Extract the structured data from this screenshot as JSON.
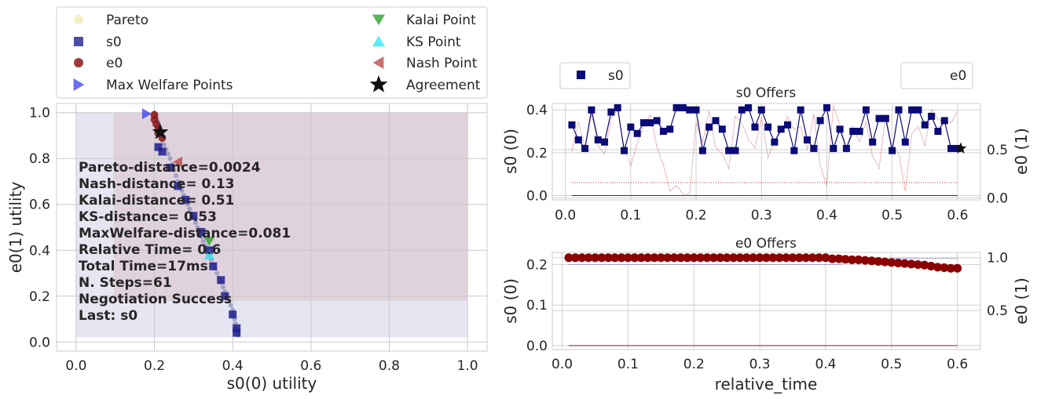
{
  "chart_data": [
    {
      "type": "scatter",
      "xlabel": "s0(0) utility",
      "ylabel": "e0(1) utility",
      "xlim": [
        -0.05,
        1.05
      ],
      "ylim": [
        -0.04,
        1.04
      ],
      "xticks": [
        "0.0",
        "0.2",
        "0.4",
        "0.6",
        "0.8",
        "1.0"
      ],
      "yticks": [
        "0.0",
        "0.2",
        "0.4",
        "0.6",
        "0.8",
        "1.0"
      ],
      "grid": true,
      "legend_position": "top",
      "legend": [
        "Pareto",
        "s0",
        "e0",
        "Max Welfare Points",
        "Kalai Point",
        "KS Point",
        "Nash Point",
        "Agreement"
      ],
      "regions": [
        {
          "x": [
            0.0,
            1.0
          ],
          "y": [
            0.02,
            1.0
          ],
          "color": "#e6e6f2"
        },
        {
          "x": [
            0.095,
            1.0
          ],
          "y": [
            0.18,
            1.0
          ],
          "color": "#e0d2dc"
        }
      ],
      "pareto": [
        [
          0.2,
          1.0
        ],
        [
          0.21,
          0.95
        ],
        [
          0.22,
          0.88
        ],
        [
          0.24,
          0.8
        ],
        [
          0.26,
          0.7
        ],
        [
          0.28,
          0.62
        ],
        [
          0.3,
          0.54
        ],
        [
          0.32,
          0.46
        ],
        [
          0.34,
          0.38
        ],
        [
          0.36,
          0.3
        ],
        [
          0.38,
          0.22
        ],
        [
          0.4,
          0.14
        ],
        [
          0.41,
          0.06
        ],
        [
          0.415,
          0.02
        ]
      ],
      "s0_offers": [
        [
          0.21,
          0.85
        ],
        [
          0.22,
          0.83
        ],
        [
          0.24,
          0.76
        ],
        [
          0.26,
          0.68
        ],
        [
          0.28,
          0.62
        ],
        [
          0.3,
          0.55
        ],
        [
          0.32,
          0.48
        ],
        [
          0.34,
          0.4
        ],
        [
          0.35,
          0.33
        ],
        [
          0.37,
          0.27
        ],
        [
          0.38,
          0.2
        ],
        [
          0.4,
          0.12
        ],
        [
          0.41,
          0.06
        ],
        [
          0.41,
          0.04
        ]
      ],
      "e0_offers": [
        [
          0.2,
          0.99
        ],
        [
          0.2,
          0.97
        ],
        [
          0.205,
          0.95
        ],
        [
          0.21,
          0.93
        ],
        [
          0.21,
          0.91
        ],
        [
          0.22,
          0.89
        ]
      ],
      "max_welfare_points": [
        [
          0.18,
          0.995
        ]
      ],
      "kalai_point": [
        0.34,
        0.44
      ],
      "ks_point": [
        0.34,
        0.38
      ],
      "nash_point": [
        0.26,
        0.785
      ],
      "agreement": [
        0.215,
        0.915
      ],
      "annotations": [
        "Pareto-distance=0.0024",
        "Nash-distance= 0.13",
        "Kalai-distance= 0.51",
        "KS-distance= 0.53",
        "MaxWelfare-distance=0.081",
        "Relative Time=  0.6",
        "Total Time=17ms",
        "N. Steps=61",
        "Negotiation Success",
        "Last: s0"
      ]
    },
    {
      "type": "line",
      "title": "s0 Offers",
      "xlabel": "",
      "ylabel": "s0 (0)",
      "ylabel_right": "e0 (1)",
      "xlim": [
        -0.02,
        0.635
      ],
      "ylim": [
        -0.02,
        0.43
      ],
      "ylim_right": [
        -0.02,
        0.98
      ],
      "xticks": [
        "0.0",
        "0.1",
        "0.2",
        "0.3",
        "0.4",
        "0.5",
        "0.6"
      ],
      "yticks": [
        "0.0",
        "0.2",
        "0.4"
      ],
      "yticks_right": [
        "0.0",
        "0.5"
      ],
      "legend": [
        "s0",
        "e0"
      ],
      "x": [
        0.01,
        0.02,
        0.03,
        0.04,
        0.05,
        0.06,
        0.07,
        0.08,
        0.09,
        0.1,
        0.11,
        0.12,
        0.13,
        0.14,
        0.15,
        0.16,
        0.17,
        0.18,
        0.19,
        0.2,
        0.21,
        0.22,
        0.23,
        0.24,
        0.25,
        0.26,
        0.27,
        0.28,
        0.29,
        0.3,
        0.31,
        0.32,
        0.33,
        0.34,
        0.35,
        0.36,
        0.37,
        0.38,
        0.39,
        0.4,
        0.41,
        0.42,
        0.43,
        0.44,
        0.45,
        0.46,
        0.47,
        0.48,
        0.49,
        0.5,
        0.51,
        0.52,
        0.53,
        0.54,
        0.55,
        0.56,
        0.57,
        0.58,
        0.59,
        0.6
      ],
      "series": [
        {
          "name": "s0",
          "values": [
            0.33,
            0.26,
            0.22,
            0.4,
            0.26,
            0.25,
            0.39,
            0.41,
            0.21,
            0.32,
            0.29,
            0.34,
            0.34,
            0.35,
            0.3,
            0.31,
            0.41,
            0.41,
            0.4,
            0.4,
            0.21,
            0.32,
            0.35,
            0.31,
            0.21,
            0.21,
            0.4,
            0.41,
            0.32,
            0.4,
            0.32,
            0.25,
            0.31,
            0.33,
            0.21,
            0.4,
            0.26,
            0.22,
            0.35,
            0.41,
            0.22,
            0.31,
            0.22,
            0.3,
            0.3,
            0.4,
            0.25,
            0.36,
            0.36,
            0.21,
            0.4,
            0.25,
            0.4,
            0.4,
            0.33,
            0.37,
            0.3,
            0.35,
            0.22,
            0.22
          ]
        },
        {
          "name": "",
          "values": [
            0.49,
            0.79,
            0.52,
            0.87,
            0.54,
            0.46,
            0.82,
            0.92,
            0.52,
            0.33,
            0.57,
            0.75,
            0.86,
            0.53,
            0.34,
            0.07,
            0.13,
            0.04,
            0.04,
            0.78,
            0.58,
            0.9,
            0.52,
            0.46,
            0.31,
            0.85,
            0.78,
            0.61,
            0.52,
            0.83,
            0.42,
            0.59,
            0.69,
            0.84,
            0.71,
            0.74,
            0.5,
            0.87,
            0.33,
            0.13,
            0.96,
            0.76,
            0.52,
            0.74,
            0.58,
            0.79,
            0.43,
            0.31,
            0.86,
            0.51,
            0.47,
            0.07,
            0.67,
            0.74,
            0.54,
            0.92,
            0.82,
            0.79,
            0.78,
            0.9
          ]
        }
      ],
      "reference_lines": [
        {
          "axis": "right",
          "value": 0.16,
          "color": "#c03030"
        },
        {
          "axis": "left",
          "value": 0.0,
          "color": "#2a2a8a"
        }
      ],
      "agreement": [
        0.605,
        0.22
      ]
    },
    {
      "type": "line",
      "title": "e0 Offers",
      "xlabel": "relative_time",
      "ylabel": "s0 (0)",
      "ylabel_right": "e0 (1)",
      "xlim": [
        -0.015,
        0.635
      ],
      "ylim": [
        -0.01,
        0.23
      ],
      "ylim_right": [
        0.13,
        1.05
      ],
      "xticks": [
        "0.0",
        "0.1",
        "0.2",
        "0.3",
        "0.4",
        "0.5",
        "0.6"
      ],
      "yticks": [
        "0.0",
        "0.1",
        "0.2"
      ],
      "yticks_right": [
        "0.5",
        "1.0"
      ],
      "x": [
        0.01,
        0.02,
        0.03,
        0.04,
        0.05,
        0.06,
        0.07,
        0.08,
        0.09,
        0.1,
        0.11,
        0.12,
        0.13,
        0.14,
        0.15,
        0.16,
        0.17,
        0.18,
        0.19,
        0.2,
        0.21,
        0.22,
        0.23,
        0.24,
        0.25,
        0.26,
        0.27,
        0.28,
        0.29,
        0.3,
        0.31,
        0.32,
        0.33,
        0.34,
        0.35,
        0.36,
        0.37,
        0.38,
        0.39,
        0.4,
        0.41,
        0.42,
        0.43,
        0.44,
        0.45,
        0.46,
        0.47,
        0.48,
        0.49,
        0.5,
        0.51,
        0.52,
        0.53,
        0.54,
        0.55,
        0.56,
        0.57,
        0.58,
        0.59,
        0.6
      ],
      "series": [
        {
          "name": "e0",
          "values": [
            1.0,
            1.0,
            1.0,
            1.0,
            1.0,
            1.0,
            1.0,
            1.0,
            1.0,
            1.0,
            1.0,
            1.0,
            1.0,
            1.0,
            1.0,
            1.0,
            1.0,
            1.0,
            1.0,
            1.0,
            1.0,
            1.0,
            1.0,
            1.0,
            1.0,
            1.0,
            1.0,
            1.0,
            1.0,
            1.0,
            1.0,
            1.0,
            1.0,
            1.0,
            1.0,
            1.0,
            1.0,
            1.0,
            1.0,
            1.0,
            0.99,
            0.99,
            0.985,
            0.98,
            0.98,
            0.975,
            0.97,
            0.965,
            0.96,
            0.955,
            0.95,
            0.945,
            0.94,
            0.935,
            0.93,
            0.92,
            0.91,
            0.905,
            0.9,
            0.9
          ]
        },
        {
          "name": "",
          "values": [
            0.2,
            0.2,
            0.2,
            0.2,
            0.2,
            0.2,
            0.2,
            0.2,
            0.2,
            0.2,
            0.2,
            0.2,
            0.2,
            0.2,
            0.2,
            0.2,
            0.2,
            0.2,
            0.2,
            0.2,
            0.2,
            0.2,
            0.2,
            0.2,
            0.2,
            0.2,
            0.2,
            0.2,
            0.2,
            0.2,
            0.2,
            0.2,
            0.2,
            0.2,
            0.2,
            0.2,
            0.2,
            0.2,
            0.2,
            0.2,
            0.2,
            0.2,
            0.205,
            0.205,
            0.205,
            0.21,
            0.21,
            0.21,
            0.21,
            0.215,
            0.215,
            0.215,
            0.215,
            0.215,
            0.215,
            0.215,
            0.215,
            0.215,
            0.215,
            0.215
          ]
        }
      ],
      "reference_lines": [
        {
          "axis": "left",
          "value": 0.0,
          "color": "#8a2020"
        }
      ]
    }
  ]
}
